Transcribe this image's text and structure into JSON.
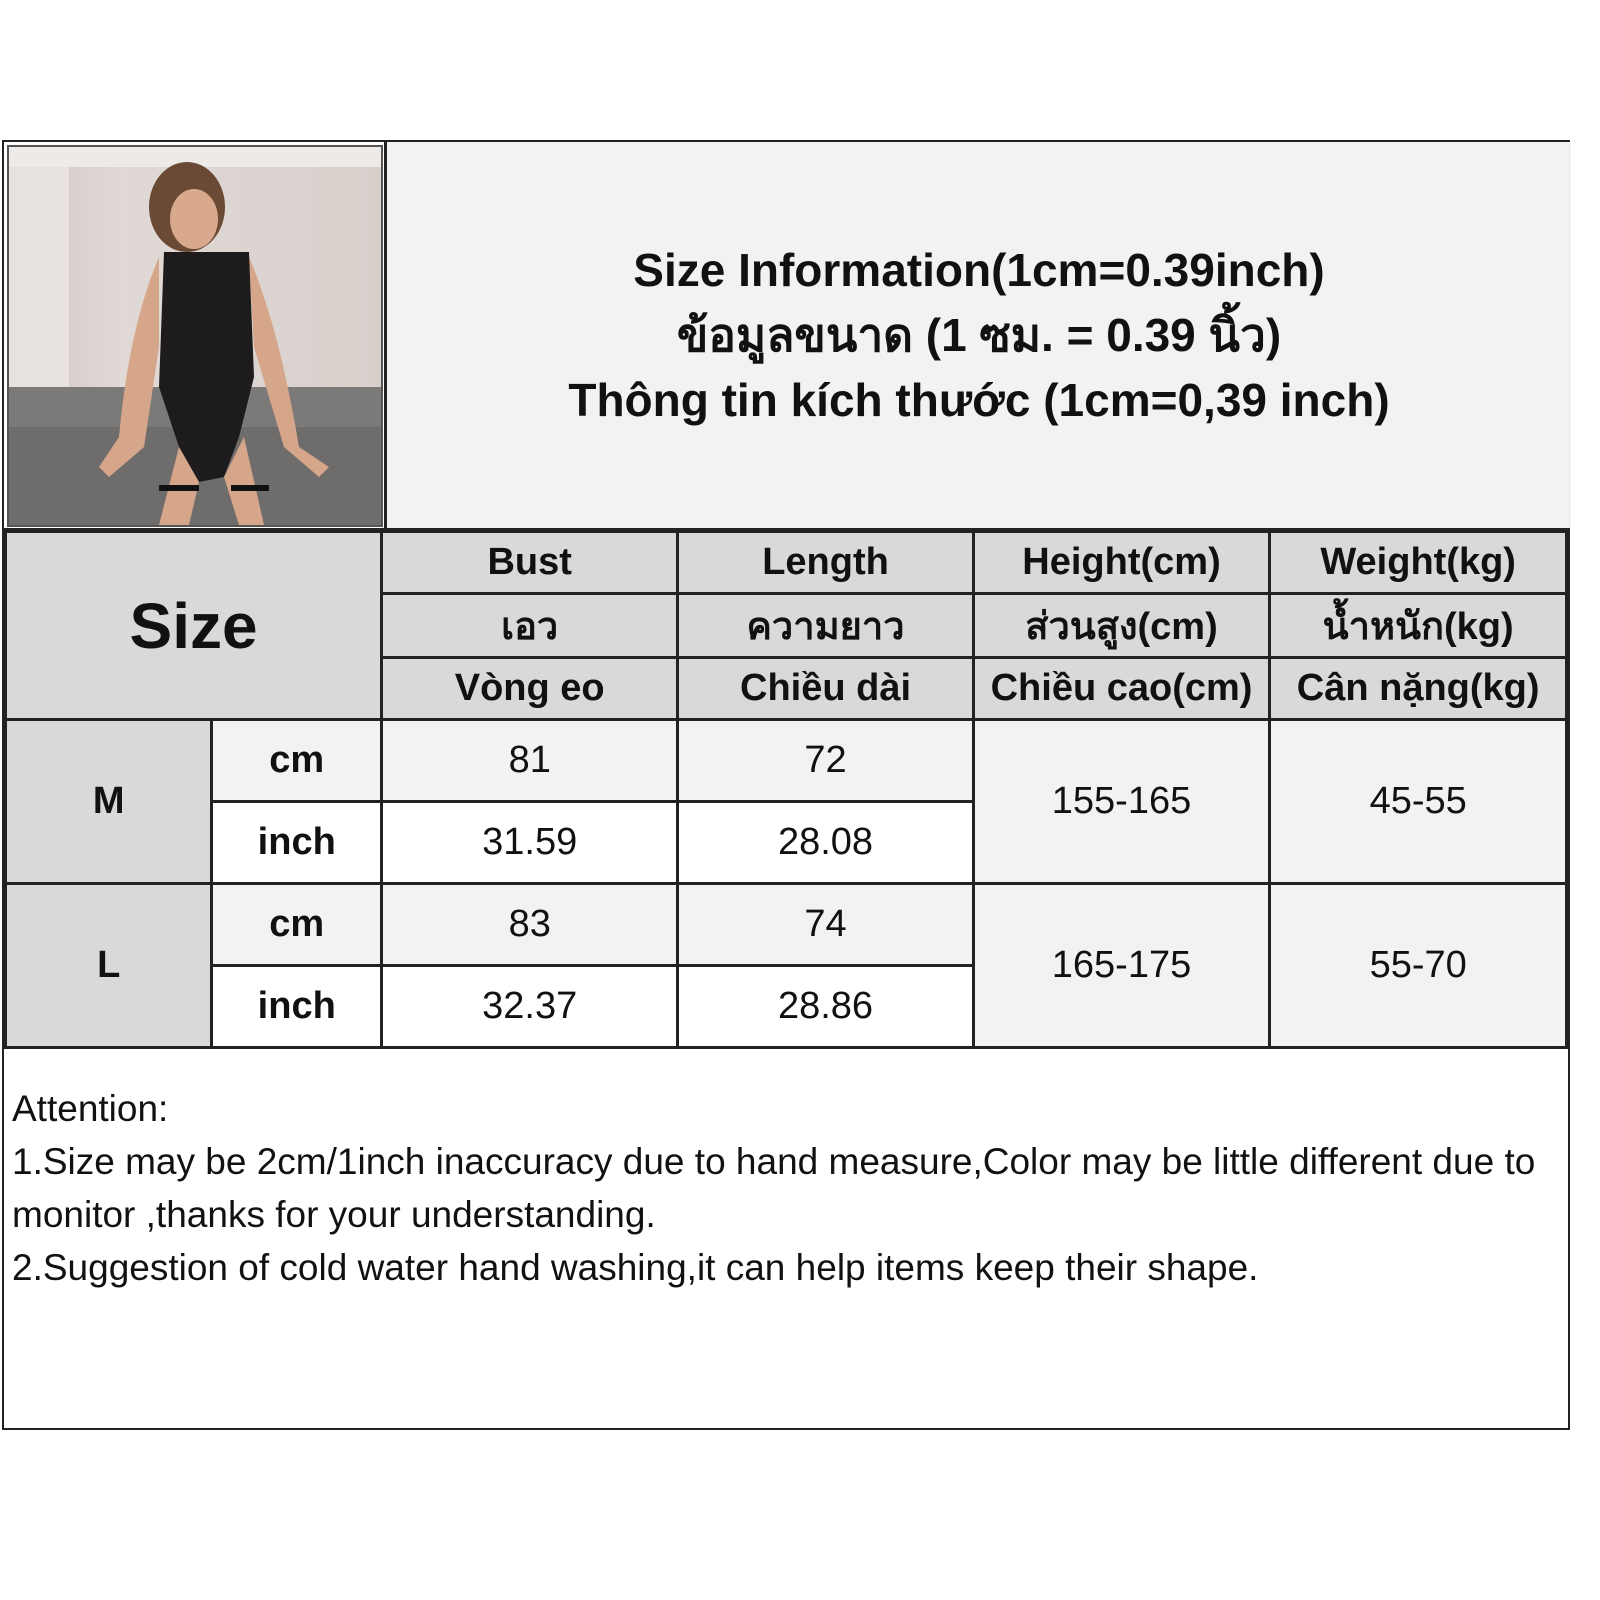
{
  "title": {
    "english": "Size Information(1cm=0.39inch)",
    "thai": "ข้อมูลขนาด (1 ซม. = 0.39 นิ้ว)",
    "vietnamese": "Thông tin kích thước (1cm=0,39 inch)"
  },
  "photo": {
    "description_icon": "model-photo"
  },
  "table": {
    "size_label": "Size",
    "columns": [
      {
        "en": "Bust",
        "th": "เอว",
        "vi": "Vòng eo"
      },
      {
        "en": "Length",
        "th": "ความยาว",
        "vi": "Chiều dài"
      },
      {
        "en": "Height(cm)",
        "th": "ส่วนสูง(cm)",
        "vi": "Chiều cao(cm)"
      },
      {
        "en": "Weight(kg)",
        "th": "น้ำหนัก(kg)",
        "vi": "Cân nặng(kg)"
      }
    ],
    "rows": [
      {
        "size": "M",
        "cm_label": "cm",
        "inch_label": "inch",
        "bust_cm": "81",
        "length_cm": "72",
        "bust_inch": "31.59",
        "length_inch": "28.08",
        "height": "155-165",
        "weight": "45-55"
      },
      {
        "size": "L",
        "cm_label": "cm",
        "inch_label": "inch",
        "bust_cm": "83",
        "length_cm": "74",
        "bust_inch": "32.37",
        "length_inch": "28.86",
        "height": "165-175",
        "weight": "55-70"
      }
    ]
  },
  "attention": {
    "heading": "Attention:",
    "line1": "1.Size may be 2cm/1inch inaccuracy due to hand measure,Color may be little different due to monitor ,thanks for your understanding.",
    "line2": "2.Suggestion of cold water hand washing,it can help items keep their shape."
  },
  "colors": {
    "header_bg": "#d9d9d9",
    "light_bg": "#f2f2f2",
    "border": "#222222"
  }
}
